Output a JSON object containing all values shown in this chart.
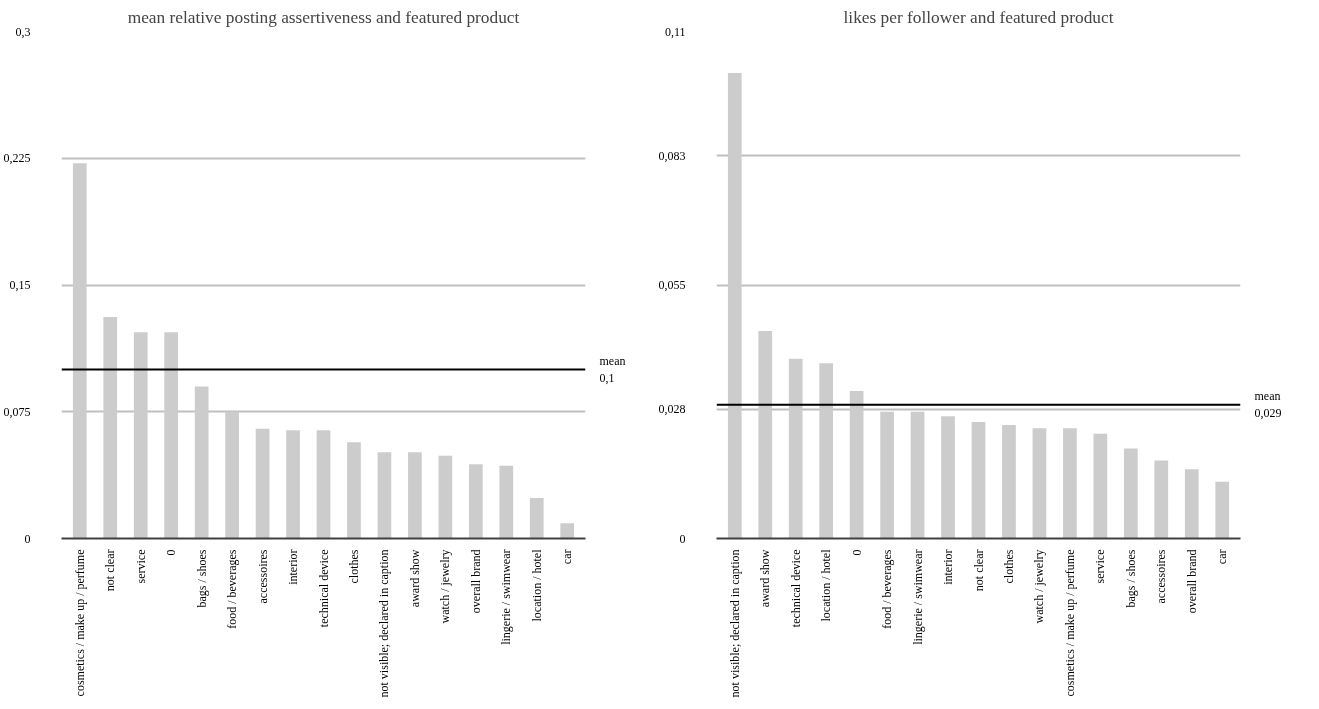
{
  "chart_data": [
    {
      "type": "bar",
      "title": "mean relative posting assertiveness and featured product",
      "categories": [
        "cosmetics / make up / perfume",
        "not clear",
        "service",
        "0",
        "bags / shoes",
        "food / beverages",
        "accessoires",
        "interior",
        "technical device",
        "clothes",
        "not visible; declared in caption",
        "award show",
        "watch / jewelry",
        "overall brand",
        "lingerie / swimwear",
        "location / hotel",
        "car"
      ],
      "series": [
        {
          "color": "#cccccc",
          "values": [
            0.222,
            0.131,
            0.122,
            0.122,
            0.09,
            0.075,
            0.065,
            0.064,
            0.064,
            0.057,
            0.051,
            0.051,
            0.049,
            0.044,
            0.043,
            0.024,
            0.009
          ]
        }
      ],
      "ylim": [
        0,
        0.3
      ],
      "yticks": [
        0,
        {
          "value": 0.075,
          "label": "0,075"
        },
        {
          "value": 0.15,
          "label": "0,15"
        },
        {
          "value": 0.225,
          "label": "0,225"
        },
        {
          "value": 0.3,
          "label": "0,3"
        }
      ],
      "ref_lines": [
        {
          "axis": "y",
          "value": 0.1,
          "label": "mean\n0,1",
          "color": "#000000"
        }
      ],
      "grid": "y"
    },
    {
      "type": "bar",
      "title": "likes per follower and featured product",
      "categories": [
        "not visible; declared in caption",
        "award show",
        "technical device",
        "location / hotel",
        "0",
        "food / beverages",
        "lingerie / swimwear",
        "interior",
        "not clear",
        "clothes",
        "watch / jewelry",
        "cosmetics / make up / perfume",
        "service",
        "bags / shoes",
        "accessoires",
        "overall brand",
        "car"
      ],
      "series": [
        {
          "color": "#cccccc",
          "values": [
            0.101,
            0.045,
            0.039,
            0.038,
            0.032,
            0.0275,
            0.0275,
            0.0265,
            0.0253,
            0.0246,
            0.0239,
            0.0239,
            0.0227,
            0.0195,
            0.0169,
            0.015,
            0.0123
          ]
        }
      ],
      "ylim": [
        0,
        0.11
      ],
      "yticks": [
        0,
        {
          "value": 0.028,
          "label": "0,028"
        },
        {
          "value": 0.055,
          "label": "0,055"
        },
        {
          "value": 0.083,
          "label": "0,083"
        },
        {
          "value": 0.11,
          "label": "0,11"
        }
      ],
      "ref_lines": [
        {
          "axis": "y",
          "value": 0.029,
          "label": "mean\n0,029",
          "color": "#000000"
        }
      ],
      "grid": "y"
    }
  ]
}
